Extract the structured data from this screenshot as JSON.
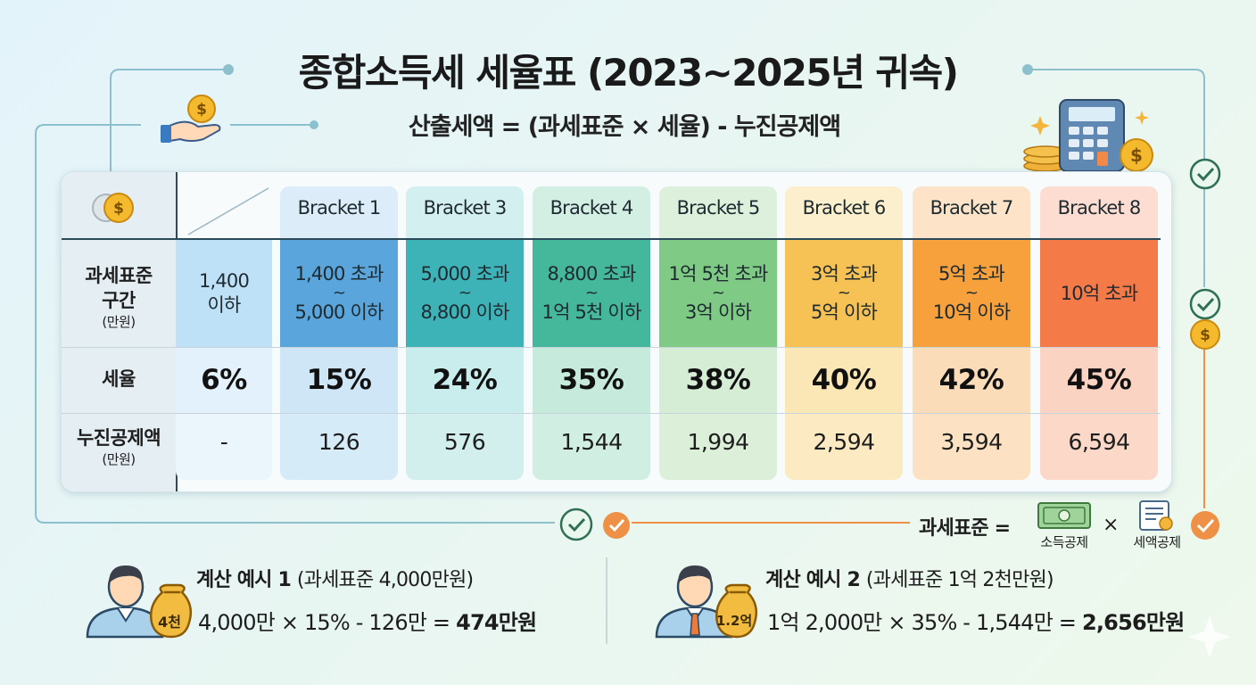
{
  "title": "종합소득세 세율표 (2023~2025년 귀속)",
  "formula": "산출세액 = (과세표준 × 세율) - 누진공제액",
  "row_labels": {
    "range_main": "과세표준\n구간",
    "range_sub": "(만원)",
    "rate": "세율",
    "deduction_main": "누진공제액",
    "deduction_sub": "(만원)"
  },
  "brackets": [
    {
      "header": "",
      "range_top": "1,400",
      "range_bottom": "이하",
      "rate": "6%",
      "deduction": "-",
      "colors": {
        "range": "#bfe1f7",
        "rate": "#e2f1fb",
        "ded": "#eaf5fc"
      }
    },
    {
      "header": "Bracket 1",
      "range_top": "1,400 초과",
      "range_bottom": "5,000 이하",
      "rate": "15%",
      "deduction": "126",
      "colors": {
        "header": "#dcedf9",
        "range": "#5aa5dc",
        "rate": "#cfe6f7",
        "ded": "#d6ebf8"
      }
    },
    {
      "header": "Bracket 3",
      "range_top": "5,000 초과",
      "range_bottom": "8,800 이하",
      "rate": "24%",
      "deduction": "576",
      "colors": {
        "header": "#d4eff0",
        "range": "#3db3b8",
        "rate": "#c9ecec",
        "ded": "#d2efee"
      }
    },
    {
      "header": "Bracket 4",
      "range_top": "8,800 초과",
      "range_bottom": "1억 5천 이하",
      "rate": "35%",
      "deduction": "1,544",
      "colors": {
        "header": "#d3efe4",
        "range": "#45b79a",
        "rate": "#c6ebdc",
        "ded": "#d0eee1"
      }
    },
    {
      "header": "Bracket 5",
      "range_top": "1억 5천 초과",
      "range_bottom": "3억 이하",
      "rate": "38%",
      "deduction": "1,994",
      "colors": {
        "header": "#dcf0dc",
        "range": "#7fcb86",
        "rate": "#d4edd4",
        "ded": "#dcf0d9"
      }
    },
    {
      "header": "Bracket 6",
      "range_top": "3억 초과",
      "range_bottom": "5억 이하",
      "rate": "40%",
      "deduction": "2,594",
      "colors": {
        "header": "#fbefcd",
        "range": "#f6c255",
        "rate": "#fbe6b6",
        "ded": "#fcebc2"
      }
    },
    {
      "header": "Bracket 7",
      "range_top": "5억 초과",
      "range_bottom": "10억 이하",
      "rate": "42%",
      "deduction": "3,594",
      "colors": {
        "header": "#fde4c8",
        "range": "#f6a13c",
        "rate": "#fbdcb8",
        "ded": "#fce2c3"
      }
    },
    {
      "header": "Bracket 8",
      "range_top": "10억 초과",
      "range_bottom": "",
      "rate": "45%",
      "deduction": "6,594",
      "colors": {
        "header": "#fdddd2",
        "range": "#f47a47",
        "rate": "#fbd3c2",
        "ded": "#fcd8c9"
      }
    }
  ],
  "tax_base_formula": {
    "label": "과세표준 =",
    "times": "×",
    "item1": "소득공제",
    "item2": "세액공제"
  },
  "examples": [
    {
      "title": "계산 예시 1",
      "subtitle": "(과세표준 4,000만원)",
      "calc": "4,000만 × 15% - 126만 = ",
      "result": "474만원",
      "bag": "4천"
    },
    {
      "title": "계산 예시 2",
      "subtitle": "(과세표준 1억 2천만원)",
      "calc": "1억 2,000만 × 35% - 1,544만 = ",
      "result": "2,656만원",
      "bag": "1.2억"
    }
  ],
  "icons": [
    "coin-icon",
    "hand-coin-icon",
    "calculator-icon",
    "check-icon",
    "person-icon",
    "money-bag-icon",
    "banknote-icon",
    "receipt-icon"
  ],
  "colors": {
    "accent_teal": "#7fb8c4",
    "accent_orange": "#ee9146",
    "check_green": "#3f9c6d"
  }
}
